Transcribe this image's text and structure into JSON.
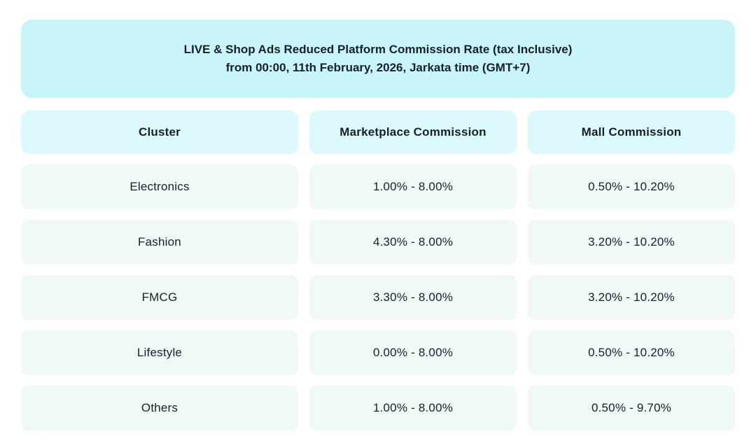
{
  "banner": {
    "title_line1": "LIVE & Shop Ads Reduced Platform Commission Rate (tax Inclusive)",
    "title_line2": "from 00:00, 11th February, 2026, Jarkata time (GMT+7)"
  },
  "table": {
    "columns": [
      "Cluster",
      "Marketplace Commission",
      "Mall Commission"
    ],
    "rows": [
      {
        "cluster": "Electronics",
        "marketplace": "1.00% - 8.00%",
        "mall": "0.50% - 10.20%"
      },
      {
        "cluster": "Fashion",
        "marketplace": "4.30% - 8.00%",
        "mall": "3.20% - 10.20%"
      },
      {
        "cluster": "FMCG",
        "marketplace": "3.30% - 8.00%",
        "mall": "3.20% - 10.20%"
      },
      {
        "cluster": "Lifestyle",
        "marketplace": "0.00% - 8.00%",
        "mall": "0.50% - 10.20%"
      },
      {
        "cluster": "Others",
        "marketplace": "1.00% - 8.00%",
        "mall": "0.50% - 9.70%"
      }
    ]
  },
  "colors": {
    "banner_bg": "#c8f6f8",
    "header_bg": "#dcfafc",
    "row_bg": "#f1f9f7",
    "text": "#15202a"
  }
}
